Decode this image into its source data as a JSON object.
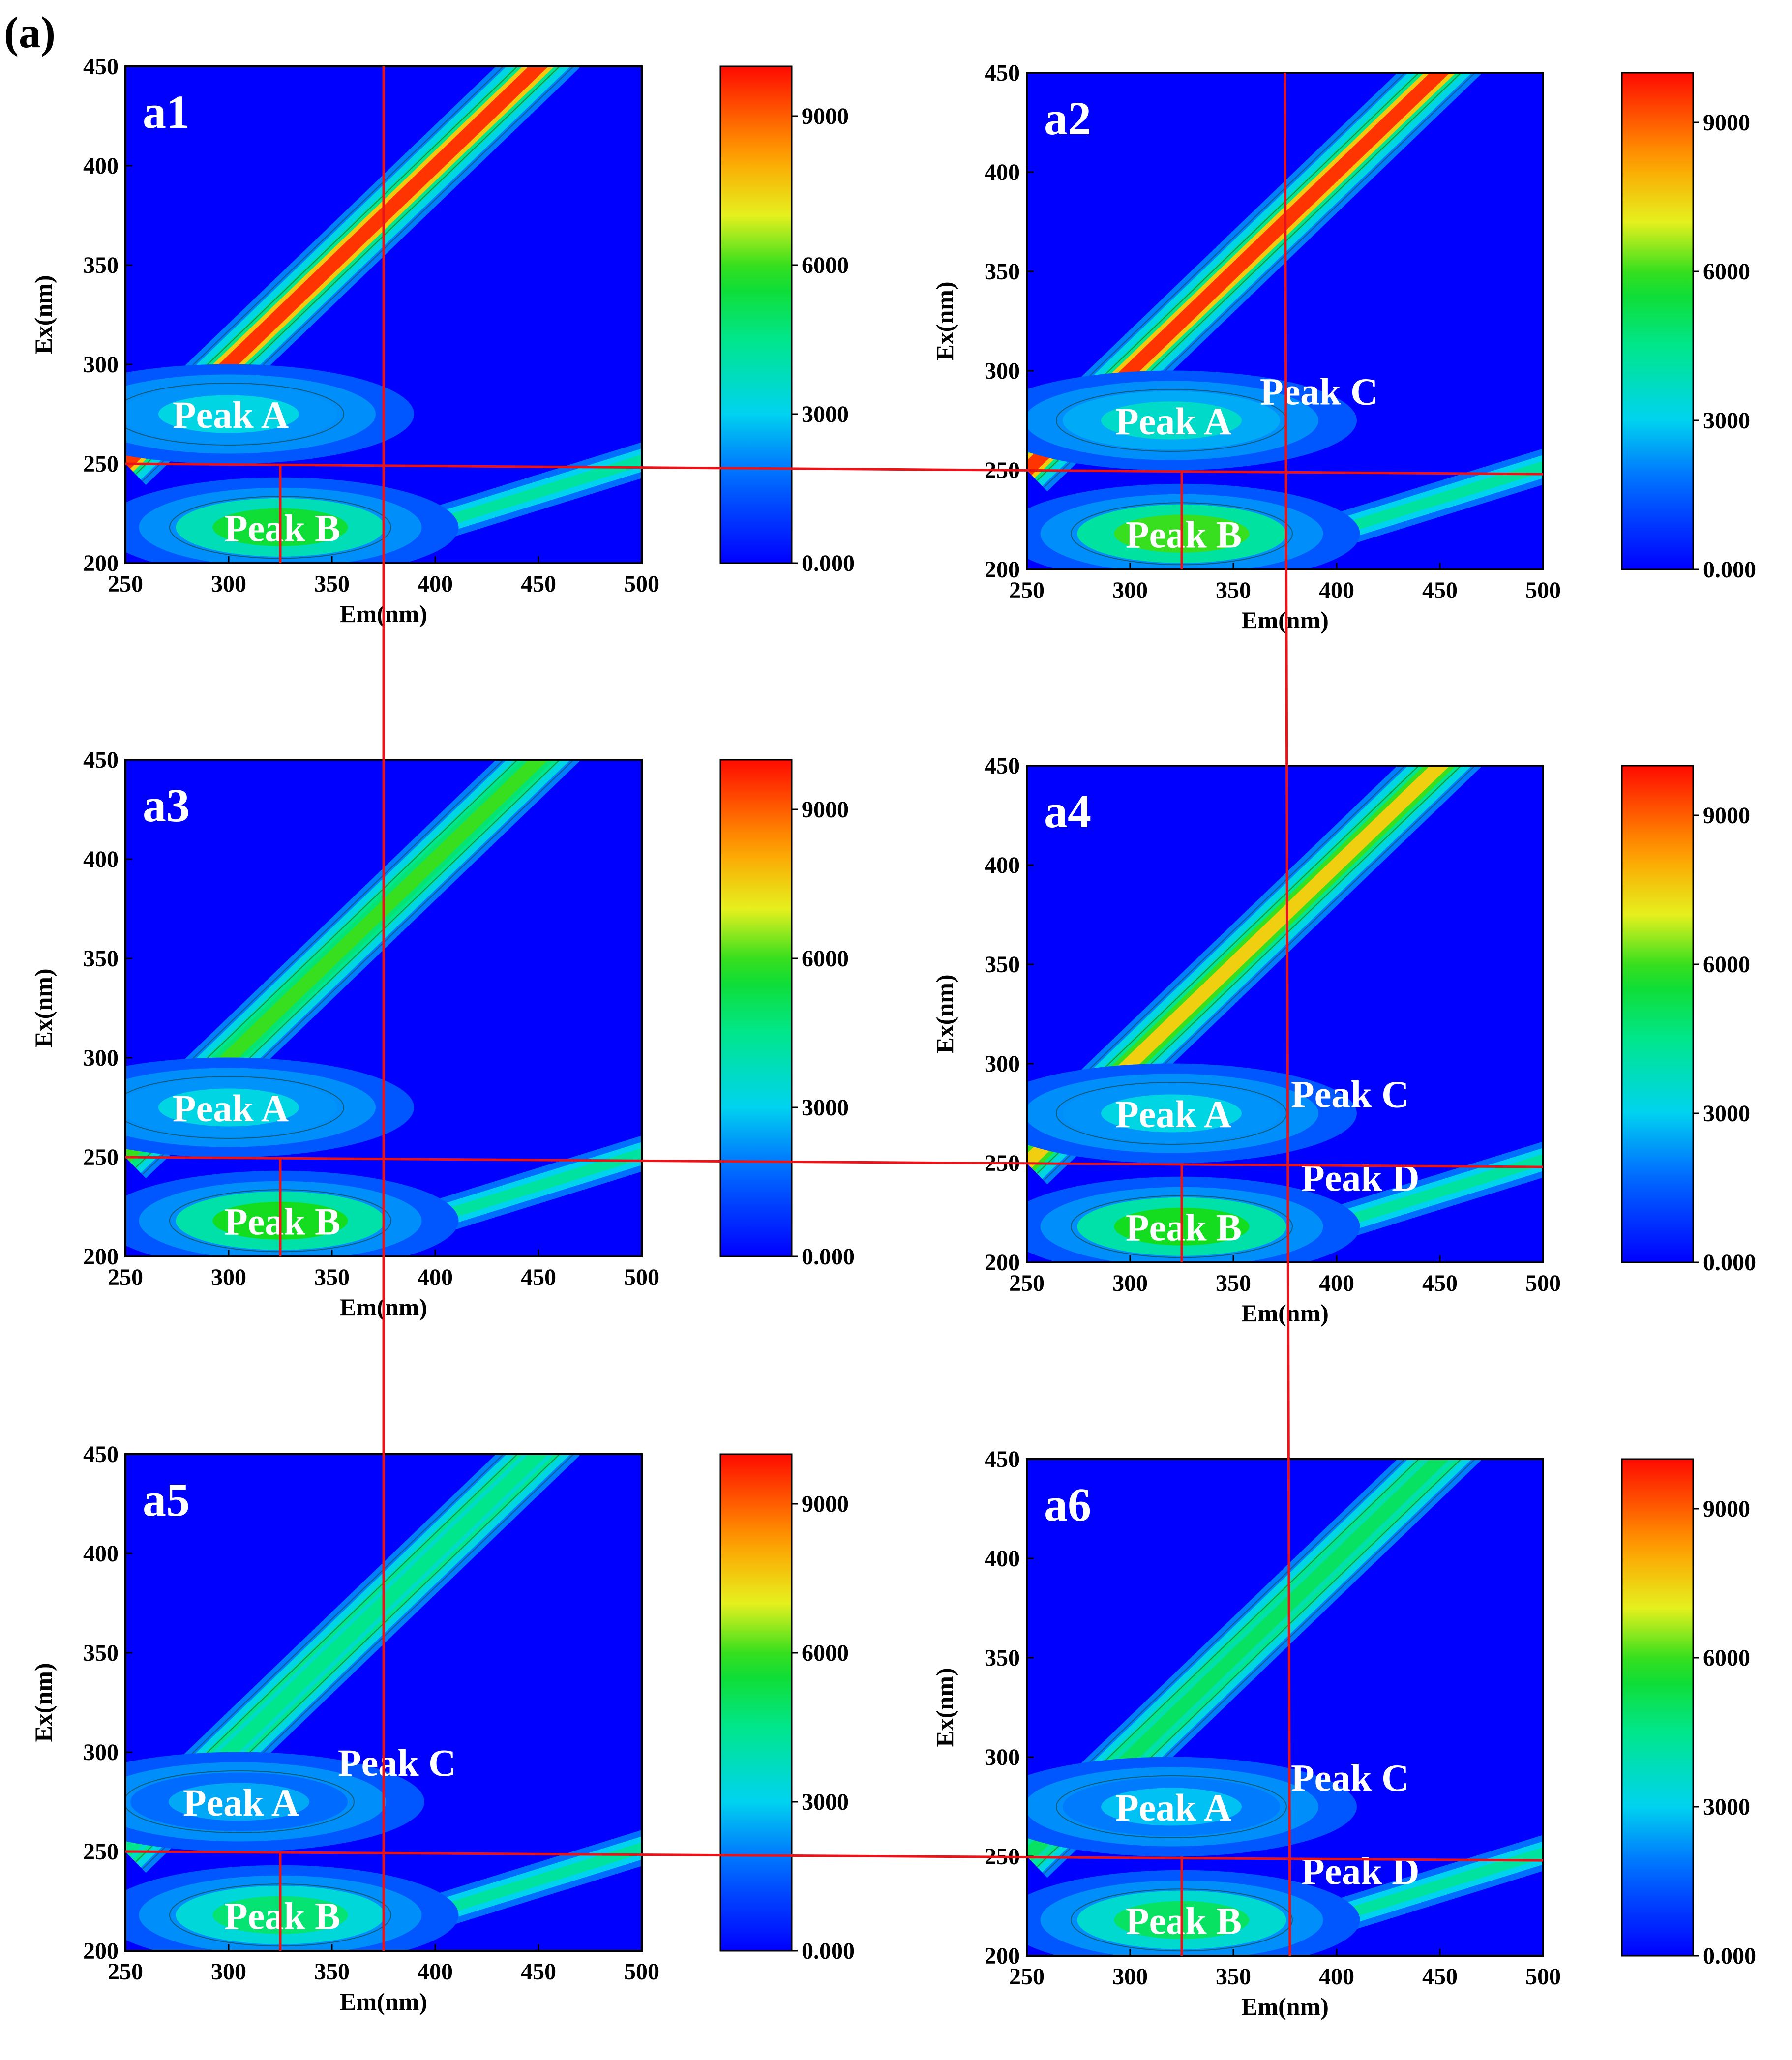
{
  "figure_label": "(a)",
  "colors": {
    "background": "#0000ff",
    "ridge_high": "#ff2a00",
    "mid_green": "#22dd22",
    "cyan": "#22ddee",
    "guide_line": "#e8141a"
  },
  "chart_data": [
    {
      "type": "heatmap",
      "panel": "a1",
      "title": "",
      "xlabel": "Em(nm)",
      "ylabel": "Ex(nm)",
      "xlim": [
        250,
        500
      ],
      "ylim": [
        200,
        450
      ],
      "xticks": [
        "250",
        "300",
        "350",
        "400",
        "450",
        "500"
      ],
      "yticks": [
        "200",
        "250",
        "300",
        "350",
        "400",
        "450"
      ],
      "colorbar": {
        "range": [
          0,
          10000
        ],
        "ticks": [
          "0.000",
          "3000",
          "6000",
          "9000"
        ]
      },
      "ridge_intensity": 0.95,
      "peaks": [
        {
          "label": "Peak A",
          "em": 280,
          "ex": 275,
          "intensity": 0.32
        },
        {
          "label": "Peak B",
          "em": 305,
          "ex": 218,
          "intensity": 0.55
        }
      ],
      "guide": {
        "vertical_em": 375,
        "horizontal_ex": 250,
        "tick_em": 325
      }
    },
    {
      "type": "heatmap",
      "panel": "a2",
      "title": "",
      "xlabel": "Em(nm)",
      "ylabel": "Ex(nm)",
      "xlim": [
        250,
        500
      ],
      "ylim": [
        200,
        450
      ],
      "xticks": [
        "250",
        "300",
        "350",
        "400",
        "450",
        "500"
      ],
      "yticks": [
        "200",
        "250",
        "300",
        "350",
        "400",
        "450"
      ],
      "colorbar": {
        "range": [
          0,
          10000
        ],
        "ticks": [
          "0.000",
          "3000",
          "6000",
          "9000"
        ]
      },
      "ridge_intensity": 0.95,
      "peaks": [
        {
          "label": "Peak A",
          "em": 300,
          "ex": 275,
          "intensity": 0.36
        },
        {
          "label": "Peak B",
          "em": 305,
          "ex": 218,
          "intensity": 0.6
        },
        {
          "label": "Peak C",
          "em": 370,
          "ex": 290,
          "intensity": 0.0
        }
      ],
      "guide": {
        "vertical_em": 375,
        "horizontal_ex": 250,
        "tick_em": 325
      }
    },
    {
      "type": "heatmap",
      "panel": "a3",
      "title": "",
      "xlabel": "Em(nm)",
      "ylabel": "Ex(nm)",
      "xlim": [
        250,
        500
      ],
      "ylim": [
        200,
        450
      ],
      "xticks": [
        "250",
        "300",
        "350",
        "400",
        "450",
        "500"
      ],
      "yticks": [
        "200",
        "250",
        "300",
        "350",
        "400",
        "450"
      ],
      "colorbar": {
        "range": [
          0,
          10000
        ],
        "ticks": [
          "0.000",
          "3000",
          "6000",
          "9000"
        ]
      },
      "ridge_intensity": 0.6,
      "peaks": [
        {
          "label": "Peak A",
          "em": 280,
          "ex": 275,
          "intensity": 0.32
        },
        {
          "label": "Peak B",
          "em": 305,
          "ex": 218,
          "intensity": 0.58
        }
      ],
      "guide": {
        "vertical_em": 375,
        "horizontal_ex": 250,
        "tick_em": 325
      }
    },
    {
      "type": "heatmap",
      "panel": "a4",
      "title": "",
      "xlabel": "Em(nm)",
      "ylabel": "Ex(nm)",
      "xlim": [
        250,
        500
      ],
      "ylim": [
        200,
        450
      ],
      "xticks": [
        "250",
        "300",
        "350",
        "400",
        "450",
        "500"
      ],
      "yticks": [
        "200",
        "250",
        "300",
        "350",
        "400",
        "450"
      ],
      "colorbar": {
        "range": [
          0,
          10000
        ],
        "ticks": [
          "0.000",
          "3000",
          "6000",
          "9000"
        ]
      },
      "ridge_intensity": 0.75,
      "peaks": [
        {
          "label": "Peak A",
          "em": 300,
          "ex": 275,
          "intensity": 0.32
        },
        {
          "label": "Peak B",
          "em": 305,
          "ex": 218,
          "intensity": 0.58
        },
        {
          "label": "Peak C",
          "em": 385,
          "ex": 285,
          "intensity": 0.0
        },
        {
          "label": "Peak D",
          "em": 390,
          "ex": 243,
          "intensity": 0.0
        }
      ],
      "guide": {
        "vertical_em": 375,
        "horizontal_ex": 250,
        "tick_em": 325
      }
    },
    {
      "type": "heatmap",
      "panel": "a5",
      "title": "",
      "xlabel": "Em(nm)",
      "ylabel": "Ex(nm)",
      "xlim": [
        250,
        500
      ],
      "ylim": [
        200,
        450
      ],
      "xticks": [
        "250",
        "300",
        "350",
        "400",
        "450",
        "500"
      ],
      "yticks": [
        "200",
        "250",
        "300",
        "350",
        "400",
        "450"
      ],
      "colorbar": {
        "range": [
          0,
          10000
        ],
        "ticks": [
          "0.000",
          "3000",
          "6000",
          "9000"
        ]
      },
      "ridge_intensity": 0.45,
      "peaks": [
        {
          "label": "Peak A",
          "em": 285,
          "ex": 275,
          "intensity": 0.25
        },
        {
          "label": "Peak B",
          "em": 305,
          "ex": 218,
          "intensity": 0.48
        },
        {
          "label": "Peak C",
          "em": 360,
          "ex": 295,
          "intensity": 0.0
        }
      ],
      "guide": {
        "vertical_em": 375,
        "horizontal_ex": 250,
        "tick_em": 325
      }
    },
    {
      "type": "heatmap",
      "panel": "a6",
      "title": "",
      "xlabel": "Em(nm)",
      "ylabel": "Ex(nm)",
      "xlim": [
        250,
        500
      ],
      "ylim": [
        200,
        450
      ],
      "xticks": [
        "250",
        "300",
        "350",
        "400",
        "450",
        "500"
      ],
      "yticks": [
        "200",
        "250",
        "300",
        "350",
        "400",
        "450"
      ],
      "colorbar": {
        "range": [
          0,
          10000
        ],
        "ticks": [
          "0.000",
          "3000",
          "6000",
          "9000"
        ]
      },
      "ridge_intensity": 0.5,
      "peaks": [
        {
          "label": "Peak A",
          "em": 300,
          "ex": 275,
          "intensity": 0.28
        },
        {
          "label": "Peak B",
          "em": 305,
          "ex": 218,
          "intensity": 0.5
        },
        {
          "label": "Peak C",
          "em": 385,
          "ex": 290,
          "intensity": 0.0
        },
        {
          "label": "Peak D",
          "em": 390,
          "ex": 243,
          "intensity": 0.0
        }
      ],
      "guide": {
        "vertical_em": 375,
        "horizontal_ex": 250,
        "tick_em": 325
      }
    }
  ]
}
